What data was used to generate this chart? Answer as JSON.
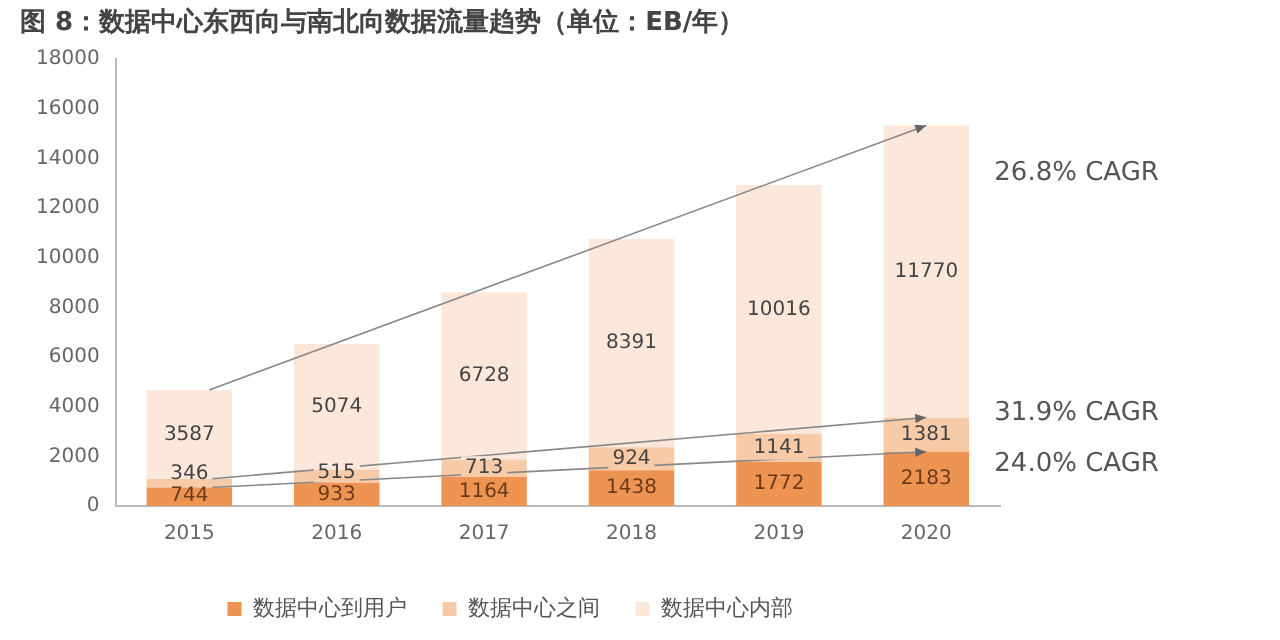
{
  "chart_data": {
    "type": "bar",
    "stacked": true,
    "title": "图 8：数据中心东西向与南北向数据流量趋势（单位：EB/年）",
    "categories": [
      "2015",
      "2016",
      "2017",
      "2018",
      "2019",
      "2020"
    ],
    "series": [
      {
        "name": "数据中心到用户",
        "color": "#ee9452",
        "values": [
          744,
          933,
          1164,
          1438,
          1772,
          2183
        ]
      },
      {
        "name": "数据中心之间",
        "color": "#f7cba8",
        "values": [
          346,
          515,
          713,
          924,
          1141,
          1381
        ]
      },
      {
        "name": "数据中心内部",
        "color": "#fce8da",
        "values": [
          3587,
          5074,
          6728,
          8391,
          10016,
          11770
        ]
      }
    ],
    "ylim": [
      0,
      18000
    ],
    "yticks": [
      0,
      2000,
      4000,
      6000,
      8000,
      10000,
      12000,
      14000,
      16000,
      18000
    ],
    "grid": false,
    "legend": "bottom",
    "data_labels": true,
    "annotations": [
      {
        "text": "26.8% CAGR",
        "x": "2020",
        "y": 15334
      },
      {
        "text": "31.9% CAGR",
        "x": "2020",
        "y": 3564
      },
      {
        "text": "24.0% CAGR",
        "x": "2020",
        "y": 2183
      }
    ]
  }
}
